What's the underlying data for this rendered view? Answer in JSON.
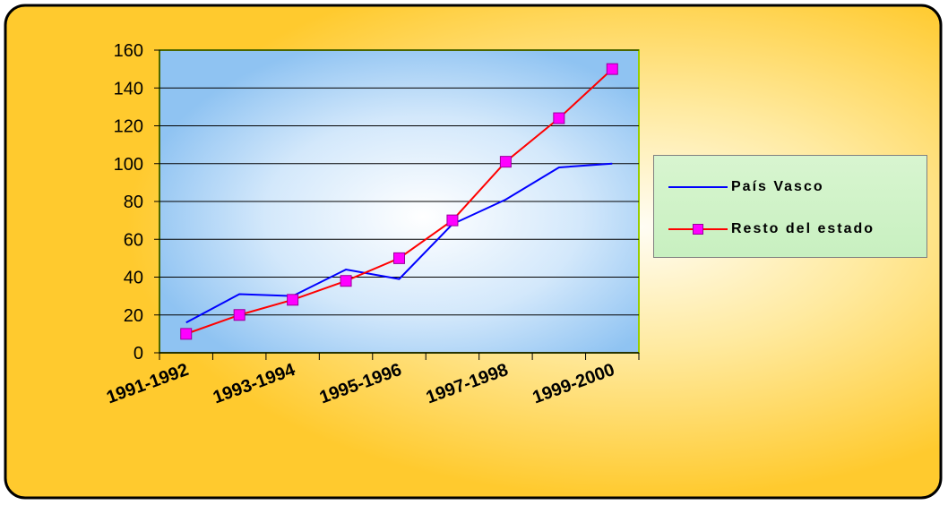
{
  "chart_data": {
    "type": "line",
    "title": "",
    "xlabel": "",
    "ylabel": "",
    "categories": [
      "1991-1992",
      "",
      "1993-1994",
      "",
      "1995-1996",
      "",
      "1997-1998",
      "",
      "1999-2000"
    ],
    "x_tick_labels": [
      "1991-1992",
      "1993-1994",
      "1995-1996",
      "1997-1998",
      "1999-2000"
    ],
    "ylim": [
      0,
      160
    ],
    "yticks": [
      0,
      20,
      40,
      60,
      80,
      100,
      120,
      140,
      160
    ],
    "grid": true,
    "legend_position": "right",
    "series": [
      {
        "name": "País Vasco",
        "color": "#0000ff",
        "marker": "none",
        "values": [
          16,
          31,
          30,
          44,
          39,
          68,
          81,
          98,
          100
        ]
      },
      {
        "name": "Resto del estado",
        "color": "#ff0000",
        "marker": "square",
        "marker_color": "#ff00ff",
        "values": [
          10,
          20,
          28,
          38,
          50,
          70,
          101,
          124,
          150
        ]
      }
    ]
  },
  "colors": {
    "frame_gold": "#ffcc33",
    "frame_light": "#fffbe8",
    "plot_blue": "#9ccbf5",
    "plot_light": "#ffffff",
    "plot_border": "#99cc00",
    "legend_bg": "#ccf2c6"
  }
}
